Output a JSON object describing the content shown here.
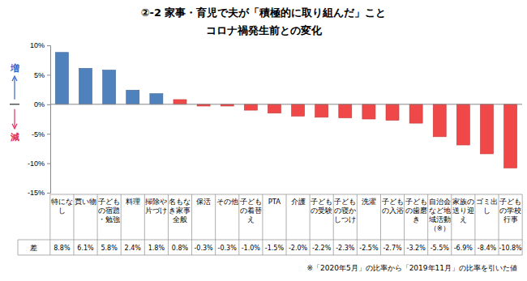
{
  "chart_data": {
    "type": "bar",
    "title": "②-2 家事・育児で夫が「積極的に取り組んだ」こと",
    "subtitle": "コロナ禍発生前との変化",
    "categories": [
      "特になし",
      "買い物",
      "子どもの宿題・勉強",
      "料理",
      "掃除や片づけ",
      "名もなき家事全般",
      "保活",
      "その他",
      "子どもの着替え",
      "PTA",
      "介護",
      "子どもの受験",
      "子どもの寝かしつけ",
      "洗濯",
      "子どもの入浴",
      "子どもの歯磨き",
      "自治会など地域活動（※）",
      "家族の送り迎え",
      "ゴミ出し",
      "子どもの学校行事"
    ],
    "values": [
      8.8,
      6.1,
      5.8,
      2.4,
      1.8,
      0.8,
      -0.3,
      -0.3,
      -1.0,
      -1.5,
      -2.0,
      -2.2,
      -2.3,
      -2.5,
      -2.7,
      -3.2,
      -5.5,
      -6.9,
      -8.4,
      -10.8
    ],
    "value_labels": [
      "8.8%",
      "6.1%",
      "5.8%",
      "2.4%",
      "1.8%",
      "0.8%",
      "-0.3%",
      "-0.3%",
      "-1.0%",
      "-1.5%",
      "-2.0%",
      "-2.2%",
      "-2.3%",
      "-2.5%",
      "-2.7%",
      "-3.2%",
      "-5.5%",
      "-6.9%",
      "-8.4%",
      "-10.8%"
    ],
    "colors": [
      "#4f81bd",
      "#4f81bd",
      "#4f81bd",
      "#4f81bd",
      "#4f81bd",
      "#f04848",
      "#f04848",
      "#f04848",
      "#f04848",
      "#f04848",
      "#f04848",
      "#f04848",
      "#f04848",
      "#f04848",
      "#f04848",
      "#f04848",
      "#f04848",
      "#f04848",
      "#f04848",
      "#f04848"
    ],
    "ylim": [
      -15,
      10
    ],
    "yticks": [
      {
        "value": -15,
        "label": "-15%"
      },
      {
        "value": -10,
        "label": "-10%"
      },
      {
        "value": -5,
        "label": "-5%"
      },
      {
        "value": 0,
        "label": "0%"
      },
      {
        "value": 5,
        "label": "5%"
      },
      {
        "value": 10,
        "label": "10%"
      }
    ],
    "grid": false,
    "data_labels": true,
    "annotations": {
      "increase": "増",
      "decrease": "減",
      "row_header": "差",
      "note": "※「2020年5月」の比率から「2019年11月」の比率を引いた値"
    }
  }
}
